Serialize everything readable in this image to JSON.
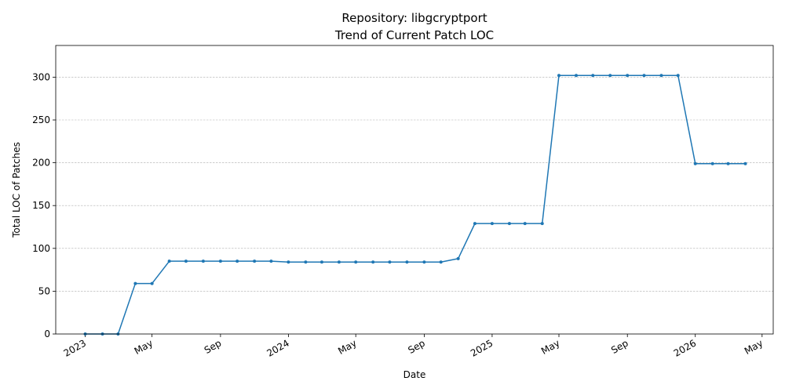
{
  "chart_data": {
    "type": "line",
    "title": "Repository: libgcryptport",
    "subtitle": "Trend of Current Patch LOC",
    "xlabel": "Date",
    "ylabel": "Total LOC of Patches",
    "ylim": [
      0,
      337
    ],
    "xlim": [
      "2022-11-09",
      "2026-05-21"
    ],
    "y_ticks": [
      0,
      50,
      100,
      150,
      200,
      250,
      300
    ],
    "x_ticks": [
      {
        "date": "2023-01-01",
        "label": "2023"
      },
      {
        "date": "2023-05-01",
        "label": "May"
      },
      {
        "date": "2023-09-01",
        "label": "Sep"
      },
      {
        "date": "2024-01-01",
        "label": "2024"
      },
      {
        "date": "2024-05-01",
        "label": "May"
      },
      {
        "date": "2024-09-01",
        "label": "Sep"
      },
      {
        "date": "2025-01-01",
        "label": "2025"
      },
      {
        "date": "2025-05-01",
        "label": "May"
      },
      {
        "date": "2025-09-01",
        "label": "Sep"
      },
      {
        "date": "2026-01-01",
        "label": "2026"
      },
      {
        "date": "2026-05-01",
        "label": "May"
      }
    ],
    "grid": "y",
    "color": "#1f77b4",
    "series": [
      {
        "x": [
          "2023-01-01",
          "2023-02-01",
          "2023-03-01",
          "2023-04-01",
          "2023-05-01",
          "2023-06-01",
          "2023-07-01",
          "2023-08-01",
          "2023-09-01",
          "2023-10-01",
          "2023-11-01",
          "2023-12-01",
          "2024-01-01",
          "2024-02-01",
          "2024-03-01",
          "2024-04-01",
          "2024-05-01",
          "2024-06-01",
          "2024-07-01",
          "2024-08-01",
          "2024-09-01",
          "2024-10-01",
          "2024-11-01",
          "2024-12-01",
          "2025-01-01",
          "2025-02-01",
          "2025-03-01",
          "2025-04-01",
          "2025-05-01",
          "2025-06-01",
          "2025-07-01",
          "2025-08-01",
          "2025-09-01",
          "2025-10-01",
          "2025-11-01",
          "2025-12-01",
          "2026-01-01",
          "2026-02-01",
          "2026-03-01",
          "2026-04-01"
        ],
        "values": [
          0,
          0,
          0,
          59,
          59,
          85,
          85,
          85,
          85,
          85,
          85,
          85,
          84,
          84,
          84,
          84,
          84,
          84,
          84,
          84,
          84,
          84,
          88,
          129,
          129,
          129,
          129,
          129,
          302,
          302,
          302,
          302,
          302,
          302,
          302,
          302,
          199,
          199,
          199,
          199
        ]
      }
    ]
  }
}
